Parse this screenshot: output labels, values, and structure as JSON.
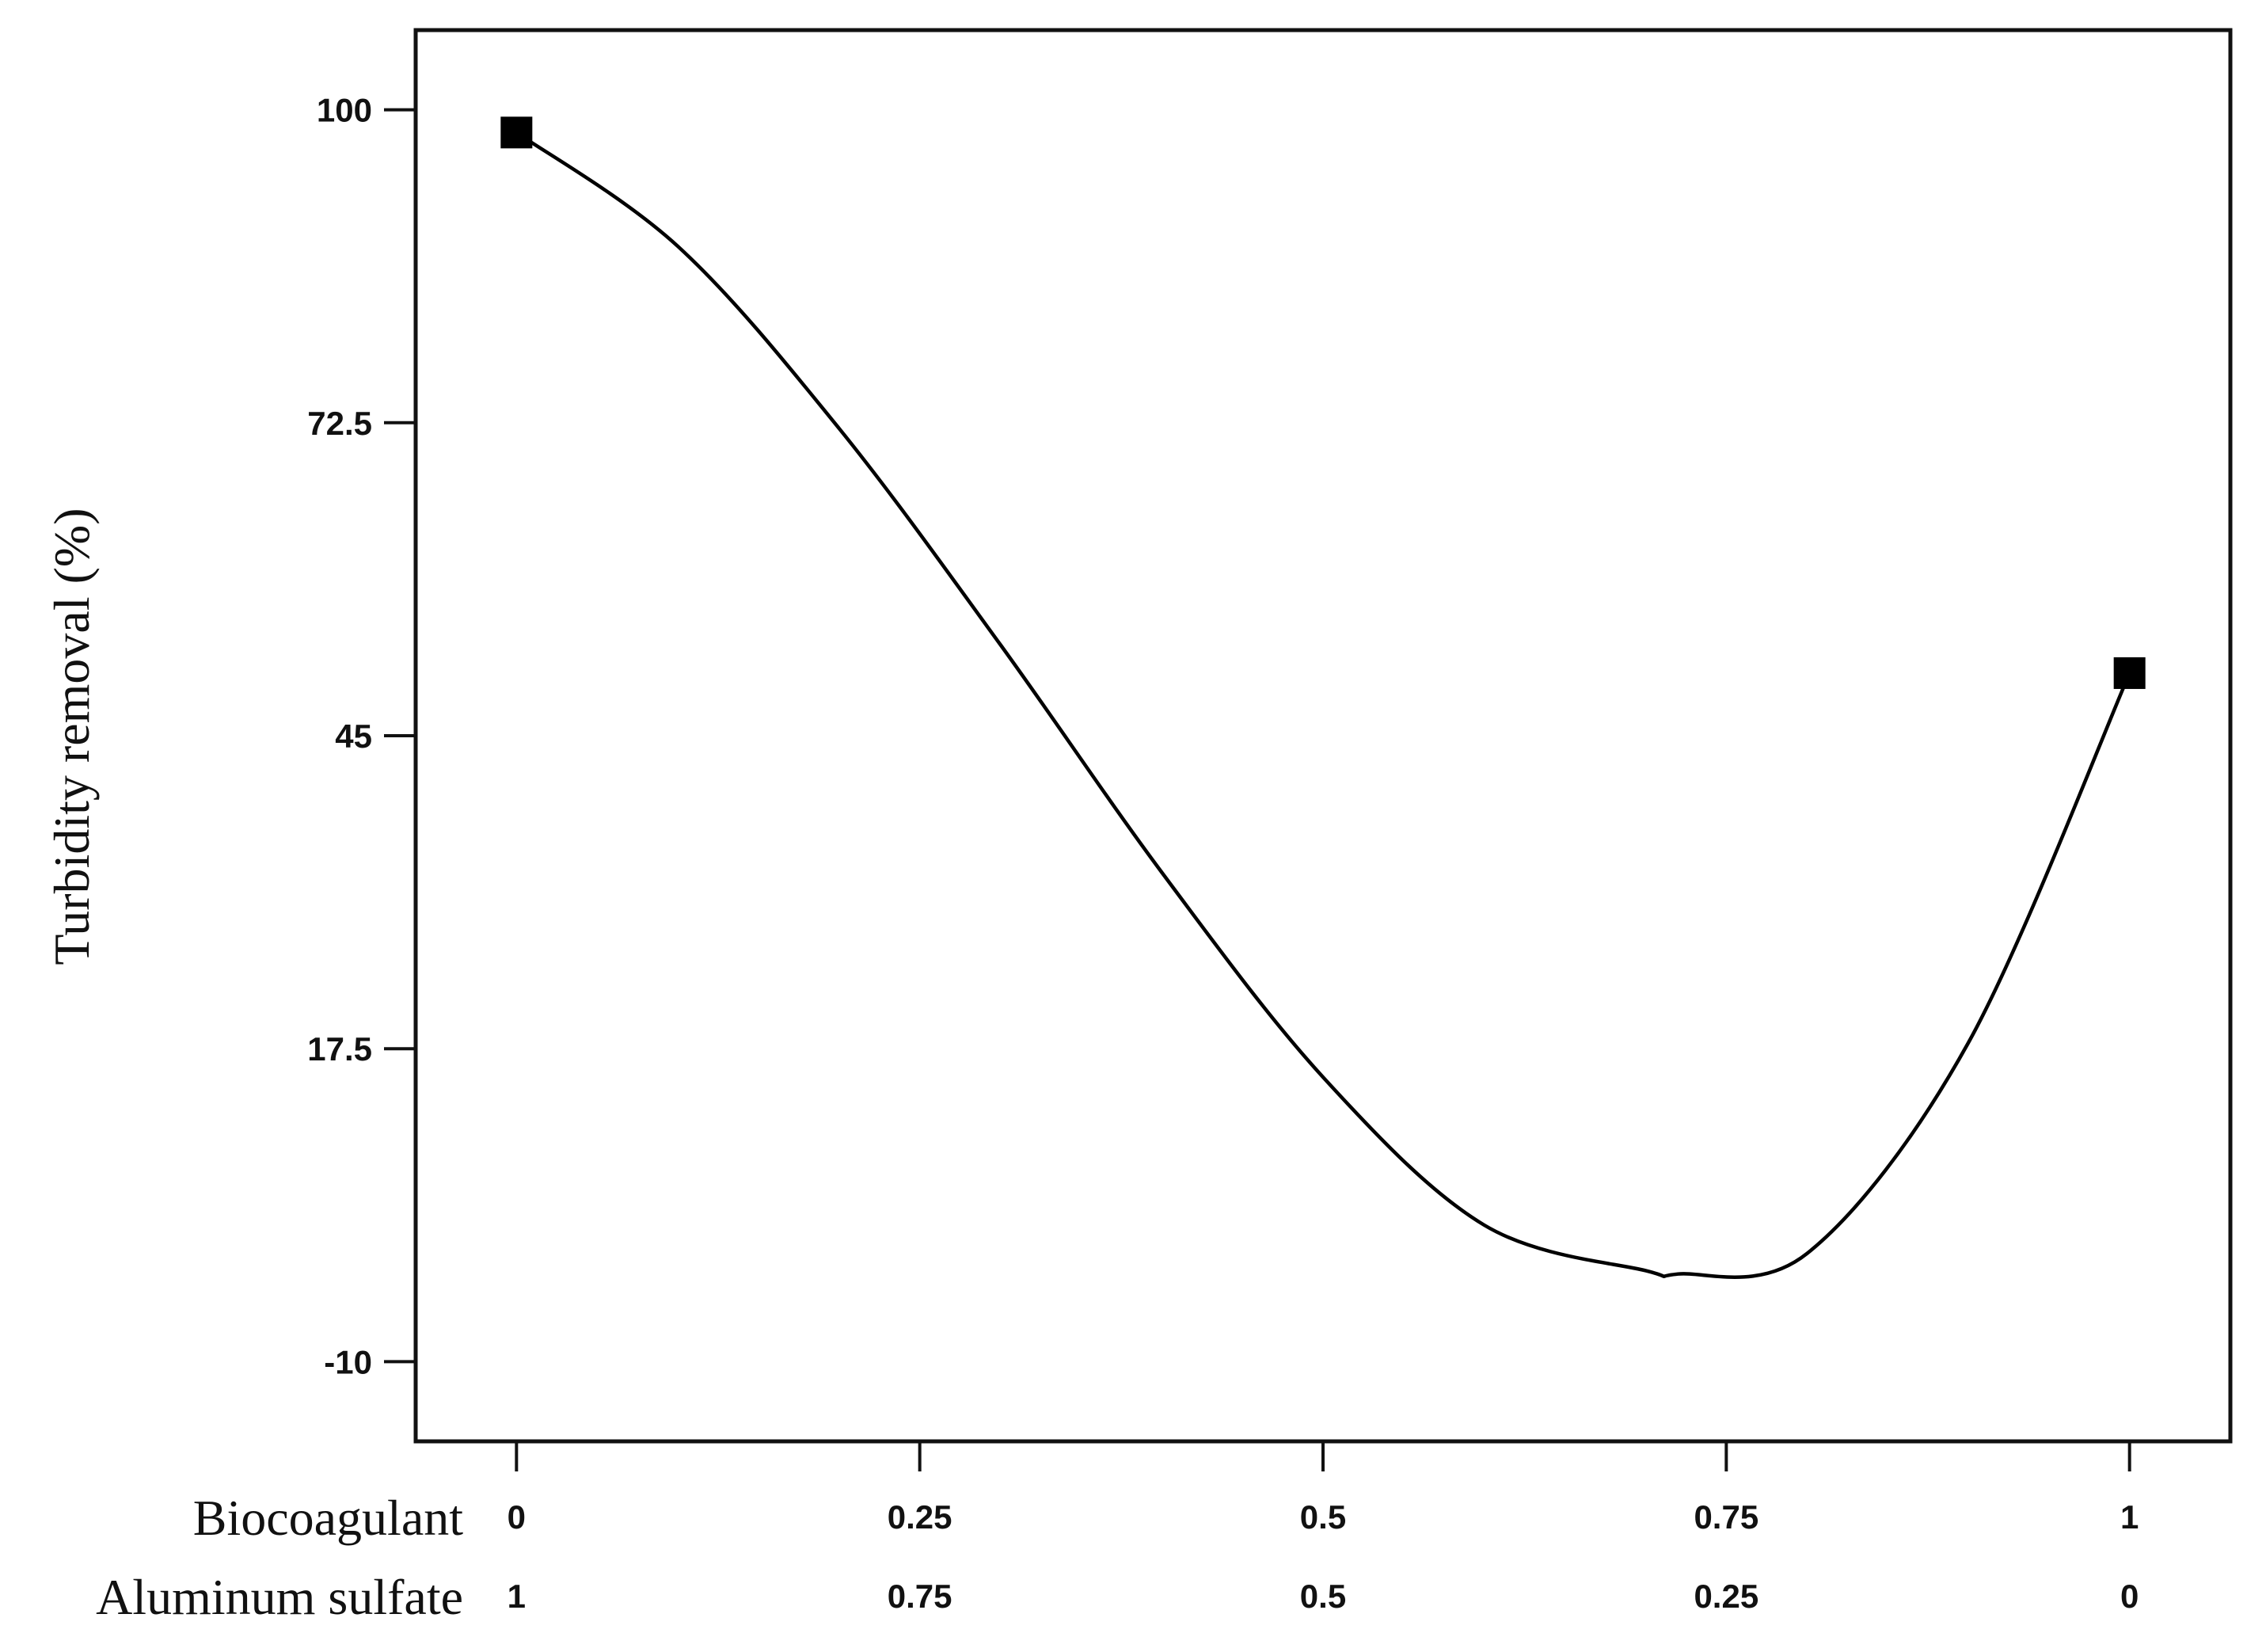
{
  "chart_data": {
    "type": "line",
    "ylabel": "Turbidity removal (%)",
    "xlabel": "",
    "ylim": [
      -17,
      107
    ],
    "xlim": [
      -0.0625,
      1.0625
    ],
    "y_ticks": [
      "100",
      "72.5",
      "45",
      "17.5",
      "-10"
    ],
    "y_tick_values": [
      100,
      72.5,
      45,
      17.5,
      -10
    ],
    "x_rows": [
      {
        "label": "Biocoagulant",
        "ticks": [
          "0",
          "0.25",
          "0.5",
          "0.75",
          "1"
        ]
      },
      {
        "label": "Aluminum sulfate",
        "ticks": [
          "1",
          "0.75",
          "0.5",
          "0.25",
          "0"
        ]
      }
    ],
    "x_tick_values": [
      0,
      0.25,
      0.5,
      0.75,
      1
    ],
    "series": [
      {
        "x": [
          0,
          0.1,
          0.2,
          0.3,
          0.4,
          0.5,
          0.6,
          0.7,
          0.72,
          0.8,
          0.9,
          1
        ],
        "y": [
          98,
          88,
          72,
          53,
          33,
          15,
          2,
          -2,
          -2.3,
          -0.5,
          18,
          50.5
        ],
        "color": "#000000"
      }
    ],
    "markers": [
      {
        "x": 0,
        "y": 98
      },
      {
        "x": 1,
        "y": 50.5
      }
    ],
    "grid": false
  }
}
